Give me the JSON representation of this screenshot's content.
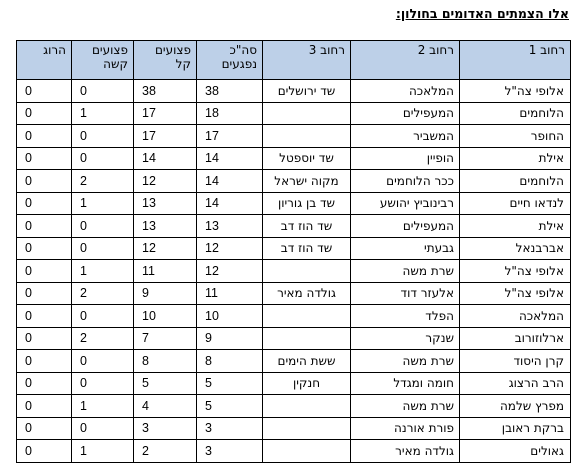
{
  "title": "אלו הצמתים האדומים בחולון:",
  "headers": [
    "רחוב 1",
    "רחוב 2",
    "רחוב 3",
    "סה\"כ נפגעים",
    "פצועים קל",
    "פצועים קשה",
    "הרוג"
  ],
  "rows": [
    [
      "אלופי צה\"ל",
      "המלאכה",
      "שד ירושלים",
      "38",
      "38",
      "0",
      "0"
    ],
    [
      "הלוחמים",
      "המעפילים",
      "",
      "18",
      "17",
      "1",
      "0"
    ],
    [
      "החופר",
      "המשביר",
      "",
      "17",
      "17",
      "0",
      "0"
    ],
    [
      "אילת",
      "הופיין",
      "שד יוספטל",
      "14",
      "14",
      "0",
      "0"
    ],
    [
      "הלוחמים",
      "ככר הלוחמים",
      "מקוה ישראל",
      "14",
      "12",
      "2",
      "0"
    ],
    [
      "לנדאו חיים",
      "רבינוביץ יהושע",
      "שד בן גוריון",
      "14",
      "13",
      "1",
      "0"
    ],
    [
      "אילת",
      "המעפילים",
      "שד הוז דב",
      "13",
      "13",
      "0",
      "0"
    ],
    [
      "אברבנאל",
      "גבעתי",
      "שד הוז דב",
      "12",
      "12",
      "0",
      "0"
    ],
    [
      "אלופי צה\"ל",
      "שרת משה",
      "",
      "12",
      "11",
      "1",
      "0"
    ],
    [
      "אלופי צה\"ל",
      "אלעזר דוד",
      "גולדה מאיר",
      "11",
      "9",
      "2",
      "0"
    ],
    [
      "המלאכה",
      "הפלד",
      "",
      "10",
      "10",
      "0",
      "0"
    ],
    [
      "ארלוזורוב",
      "שנקר",
      "",
      "9",
      "7",
      "2",
      "0"
    ],
    [
      "קרן היסוד",
      "שרת משה",
      "ששת הימים",
      "8",
      "8",
      "0",
      "0"
    ],
    [
      "הרב הרצוג",
      "חומה ומגדל",
      "חנקין",
      "5",
      "5",
      "0",
      "0"
    ],
    [
      "מפרץ שלמה",
      "שרת משה",
      "",
      "5",
      "4",
      "1",
      "0"
    ],
    [
      "ברקת ראובן",
      "פורת אורנה",
      "",
      "3",
      "3",
      "0",
      "0"
    ],
    [
      "גאולים",
      "גולדה מאיר",
      "",
      "3",
      "2",
      "1",
      "0"
    ]
  ]
}
